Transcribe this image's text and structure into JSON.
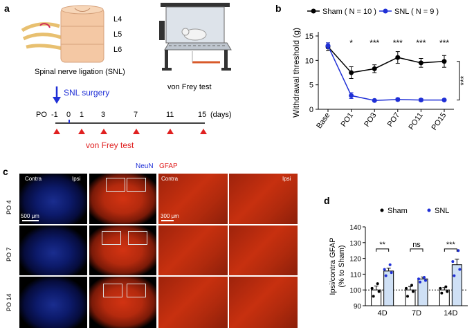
{
  "panel_a": {
    "letter": "a",
    "levels": [
      "L4",
      "L5",
      "L6"
    ],
    "snl_caption": "Spinal nerve ligation (SNL)",
    "vonfrey_caption": "von Frey test",
    "surgery_label": "SNL surgery",
    "timeline_prefix": "PO",
    "timeline_ticks": [
      "-1",
      "0",
      "1",
      "3",
      "7",
      "11",
      "15"
    ],
    "timeline_unit": "(days)",
    "timeline_vonfrey": "von Frey test"
  },
  "panel_b": {
    "letter": "b",
    "chart_data": {
      "type": "line",
      "ylabel": "Withdrawal threshold (g)",
      "categories": [
        "Base",
        "PO1",
        "PO3",
        "PO7",
        "PO11",
        "PO15"
      ],
      "ylim": [
        0,
        15
      ],
      "yticks": [
        "0",
        "5",
        "10",
        "15"
      ],
      "series": [
        {
          "name": "Sham",
          "legend": "Sham ( N = 10 )",
          "color": "#000000",
          "values": [
            12.8,
            7.5,
            8.3,
            10.6,
            9.5,
            9.8
          ],
          "errors": [
            0.8,
            1.2,
            0.8,
            1.2,
            0.9,
            1.2
          ]
        },
        {
          "name": "SNL",
          "legend": "SNL ( N = 9 )",
          "color": "#1f2fd6",
          "values": [
            13.0,
            2.8,
            1.8,
            2.0,
            1.9,
            1.9
          ],
          "errors": [
            0.6,
            0.6,
            0.2,
            0.3,
            0.3,
            0.2
          ]
        }
      ],
      "point_stars": [
        "",
        "*",
        "***",
        "***",
        "***",
        "***"
      ],
      "bracket_star": "***"
    }
  },
  "panel_c": {
    "letter": "c",
    "stain_neun": "NeuN",
    "stain_gfap": "GFAP",
    "contra": "Contra",
    "ipsi": "Ipsi",
    "ipsi_zoom": "Ipsi",
    "scale_500": "500 μm",
    "scale_300": "300 μm",
    "rows": [
      "PO 4",
      "PO 7",
      "PO 14"
    ],
    "colors": {
      "neun": "#1f2fd6",
      "gfap": "#e02020"
    }
  },
  "panel_d": {
    "letter": "d",
    "chart_data": {
      "type": "bar",
      "ylabel_line1": "Ipsi/contra GFAP",
      "ylabel_line2": "(% to Sham)",
      "categories": [
        "4D",
        "7D",
        "14D"
      ],
      "ylim": [
        90,
        140
      ],
      "yticks": [
        "90",
        "100",
        "110",
        "120",
        "130",
        "140"
      ],
      "legend": [
        "Sham",
        "SNL"
      ],
      "series": [
        {
          "name": "Sham",
          "values": [
            100,
            100,
            100
          ],
          "errors": [
            2.5,
            2.2,
            1.5
          ],
          "points": [
            [
              96,
              99,
              101,
              104
            ],
            [
              96,
              99,
              101,
              103
            ],
            [
              98,
              99,
              101,
              102
            ]
          ]
        },
        {
          "name": "SNL",
          "values": [
            112,
            107,
            116
          ],
          "errors": [
            1.8,
            1.2,
            3.5
          ],
          "points": [
            [
              109,
              111,
              113,
              116
            ],
            [
              105,
              106,
              107,
              108
            ],
            [
              109,
              113,
              118,
              125
            ]
          ]
        }
      ],
      "significance": [
        "**",
        "ns",
        "***"
      ]
    }
  }
}
